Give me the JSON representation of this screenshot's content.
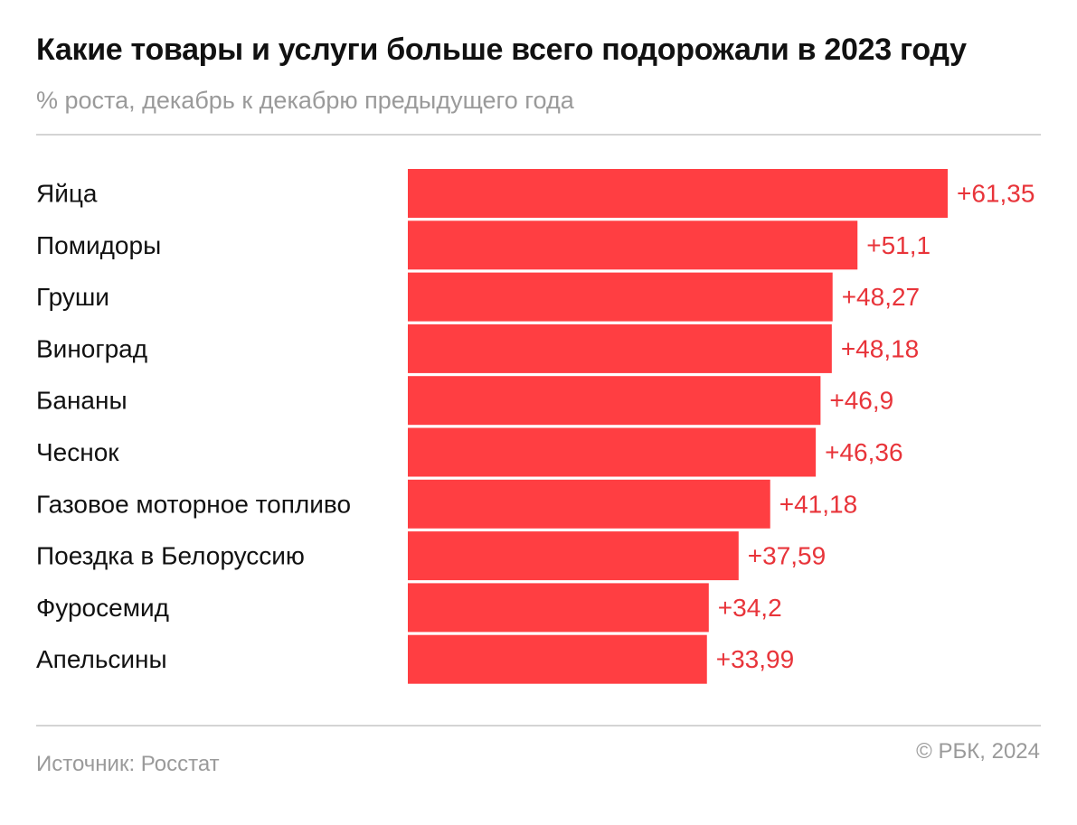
{
  "title": "Какие товары и услуги больше всего подорожали в 2023 году",
  "subtitle": "% роста, декабрь к декабрю предыдущего года",
  "source": "Источник: Росстат",
  "copyright": "© РБК, 2024",
  "colors": {
    "bar": "#ff3e42",
    "value_label": "#e8343a",
    "category_label": "#111111"
  },
  "chart_data": {
    "type": "bar",
    "orientation": "horizontal",
    "title": "Какие товары и услуги больше всего подорожали в 2023 году",
    "subtitle": "% роста, декабрь к декабрю предыдущего года",
    "xlabel": "",
    "ylabel": "",
    "xlim": [
      0,
      61.35
    ],
    "grid": false,
    "categories": [
      "Яйца",
      "Помидоры",
      "Груши",
      "Виноград",
      "Бананы",
      "Чеснок",
      "Газовое моторное топливо",
      "Поездка в Белоруссию",
      "Фуросемид",
      "Апельсины"
    ],
    "values": [
      61.35,
      51.1,
      48.27,
      48.18,
      46.9,
      46.36,
      41.18,
      37.59,
      34.2,
      33.99
    ],
    "value_labels": [
      "+61,35",
      "+51,1",
      "+48,27",
      "+48,18",
      "+46,9",
      "+46,36",
      "+41,18",
      "+37,59",
      "+34,2",
      "+33,99"
    ]
  }
}
